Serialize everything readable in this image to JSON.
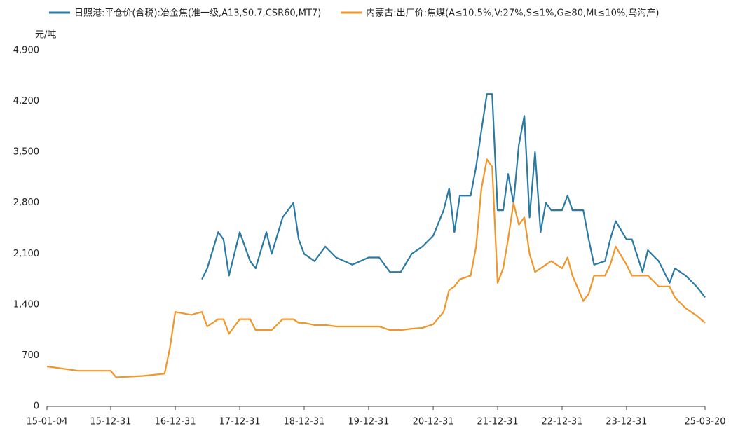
{
  "chart_data": {
    "type": "line",
    "y_label": "元/吨",
    "x": [
      "15-01-04",
      "15-06-30",
      "15-12-31",
      "16-01-31",
      "16-06-30",
      "16-10-31",
      "16-11-30",
      "16-12-31",
      "17-03-31",
      "17-05-31",
      "17-06-30",
      "17-08-31",
      "17-09-30",
      "17-10-31",
      "17-12-31",
      "18-02-28",
      "18-03-31",
      "18-05-31",
      "18-06-30",
      "18-08-31",
      "18-10-31",
      "18-11-30",
      "18-12-31",
      "19-02-28",
      "19-04-30",
      "19-06-30",
      "19-09-30",
      "19-12-31",
      "20-02-29",
      "20-04-30",
      "20-06-30",
      "20-08-31",
      "20-10-31",
      "20-12-31",
      "21-02-28",
      "21-03-31",
      "21-04-30",
      "21-05-31",
      "21-07-31",
      "21-08-31",
      "21-09-30",
      "21-10-31",
      "21-11-30",
      "21-12-31",
      "22-01-31",
      "22-02-28",
      "22-03-31",
      "22-04-30",
      "22-05-31",
      "22-06-30",
      "22-07-31",
      "22-08-31",
      "22-09-30",
      "22-10-31",
      "22-12-31",
      "23-01-31",
      "23-02-28",
      "23-04-30",
      "23-05-31",
      "23-06-30",
      "23-08-31",
      "23-09-30",
      "23-10-31",
      "23-12-31",
      "24-01-31",
      "24-03-31",
      "24-04-30",
      "24-06-30",
      "24-08-31",
      "24-09-30",
      "24-11-30",
      "25-01-31",
      "25-03-20"
    ],
    "series": [
      {
        "name": "日照港:平仓价(含税):冶金焦(准一级,A13,S0.7,CSR60,MT7)",
        "color": "#2b7aa1",
        "values": [
          null,
          null,
          null,
          null,
          null,
          null,
          null,
          null,
          null,
          1750,
          1900,
          2400,
          2300,
          1800,
          2400,
          2000,
          1900,
          2400,
          2100,
          2600,
          2800,
          2300,
          2100,
          2000,
          2200,
          2050,
          1950,
          2050,
          2050,
          1850,
          1850,
          2100,
          2200,
          2350,
          2700,
          3000,
          2400,
          2900,
          2900,
          3300,
          3800,
          4300,
          4300,
          2700,
          2700,
          3200,
          2800,
          3600,
          4000,
          2600,
          3500,
          2400,
          2800,
          2700,
          2700,
          2900,
          2700,
          2700,
          2300,
          1950,
          2000,
          2300,
          2550,
          2300,
          2300,
          1850,
          2150,
          2000,
          1700,
          1900,
          1800,
          1650,
          1500
        ]
      },
      {
        "name": "内蒙古:出厂价:焦煤(A≤10.5%,V:27%,S≤1%,G≥80,Mt≤10%,乌海产)",
        "color": "#f0962a",
        "values": [
          550,
          490,
          490,
          400,
          420,
          450,
          800,
          1300,
          1260,
          1300,
          1100,
          1200,
          1200,
          1000,
          1200,
          1200,
          1050,
          1050,
          1050,
          1200,
          1200,
          1150,
          1150,
          1120,
          1120,
          1100,
          1100,
          1100,
          1100,
          1050,
          1050,
          1070,
          1080,
          1130,
          1300,
          1600,
          1650,
          1750,
          1800,
          2200,
          3000,
          3400,
          3300,
          1700,
          1900,
          2300,
          2800,
          2500,
          2600,
          2100,
          1850,
          1900,
          1950,
          2000,
          1900,
          2050,
          1800,
          1450,
          1550,
          1800,
          1800,
          1950,
          2200,
          1950,
          1800,
          1800,
          1800,
          1650,
          1650,
          1500,
          1350,
          1250,
          1150
        ]
      }
    ],
    "xlim": [
      "15-01-04",
      "25-03-20"
    ],
    "xticks": [
      "15-01-04",
      "15-12-31",
      "16-12-31",
      "17-12-31",
      "18-12-31",
      "19-12-31",
      "20-12-31",
      "21-12-31",
      "22-12-31",
      "23-12-31",
      "25-03-20"
    ],
    "ylim": [
      0,
      4900
    ],
    "yticks": [
      0,
      700,
      {
        "value": 1400,
        "label": "1,400"
      },
      {
        "value": 2100,
        "label": "2,100"
      },
      {
        "value": 2800,
        "label": "2,800"
      },
      {
        "value": 3500,
        "label": "3,500"
      },
      {
        "value": 4200,
        "label": "4,200"
      },
      {
        "value": 4900,
        "label": "4,900"
      }
    ],
    "legend": "top",
    "grid": false
  }
}
